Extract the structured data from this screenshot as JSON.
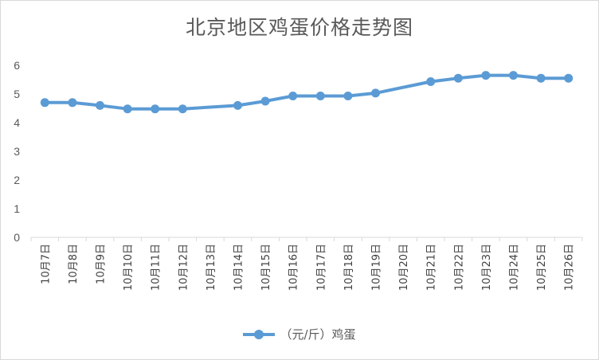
{
  "chart_data": {
    "type": "line",
    "title": "北京地区鸡蛋价格走势图",
    "categories": [
      "10月7日",
      "10月8日",
      "10月9日",
      "10月10日",
      "10月11日",
      "10月12日",
      "10月13日",
      "10月14日",
      "10月15日",
      "10月16日",
      "10月17日",
      "10月18日",
      "10月19日",
      "10月20日",
      "10月21日",
      "10月22日",
      "10月23日",
      "10月24日",
      "10月25日",
      "10月26日"
    ],
    "series": [
      {
        "name": "（元/斤）鸡蛋",
        "color": "#5b9bd5",
        "values": [
          4.7,
          4.7,
          4.6,
          4.48,
          4.48,
          4.48,
          null,
          4.6,
          4.75,
          4.93,
          4.93,
          4.93,
          5.03,
          null,
          5.43,
          5.55,
          5.65,
          5.65,
          5.55,
          5.55
        ]
      }
    ],
    "ylim": [
      0,
      6
    ],
    "yticks": [
      "0",
      "1",
      "2",
      "3",
      "4",
      "5",
      "6"
    ],
    "grid": false,
    "legend": "bottom",
    "xlabel": "",
    "ylabel": ""
  }
}
